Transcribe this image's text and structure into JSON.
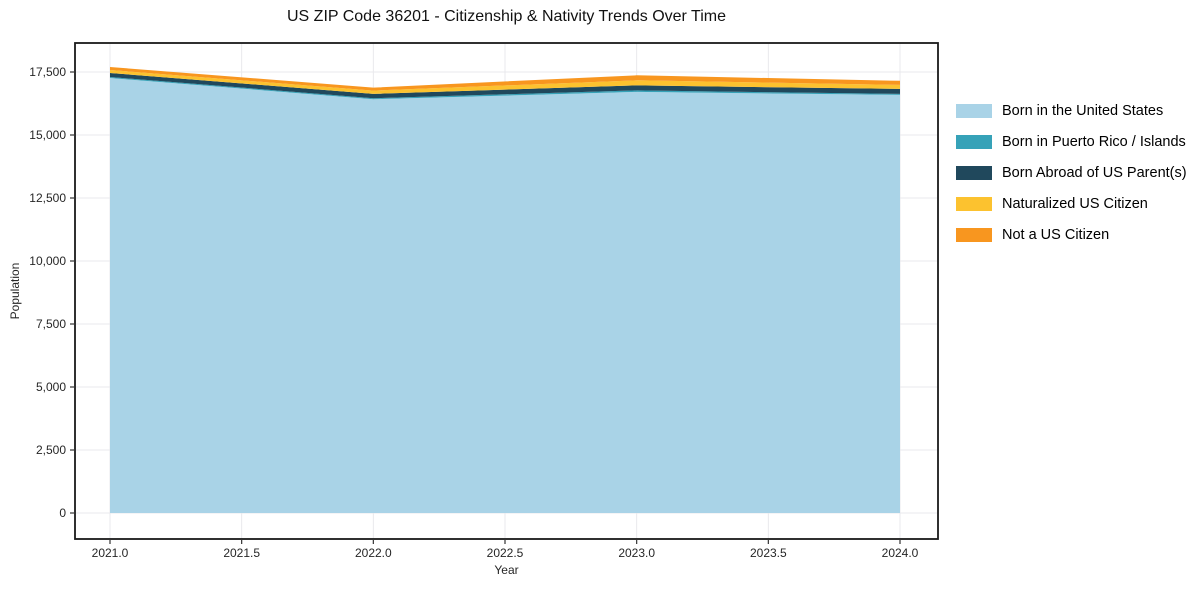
{
  "title": "US ZIP Code 36201 - Citizenship & Nativity Trends Over Time",
  "chart_data": {
    "type": "area",
    "stacked": true,
    "title": "US ZIP Code 36201 - Citizenship & Nativity Trends Over Time",
    "xlabel": "Year",
    "ylabel": "Population",
    "x": [
      2021,
      2022,
      2023,
      2024
    ],
    "series": [
      {
        "name": "Born in the United States",
        "color": "#a9d3e7",
        "values": [
          17260,
          16420,
          16710,
          16590
        ]
      },
      {
        "name": "Born in Puerto Rico / Islands",
        "color": "#36a2b8",
        "values": [
          40,
          40,
          60,
          40
        ]
      },
      {
        "name": "Born Abroad of US Parent(s)",
        "color": "#20485c",
        "values": [
          160,
          170,
          200,
          200
        ]
      },
      {
        "name": "Naturalized US Citizen",
        "color": "#fcc22f",
        "values": [
          120,
          130,
          200,
          160
        ]
      },
      {
        "name": "Not a US Citizen",
        "color": "#f8961f",
        "values": [
          120,
          120,
          200,
          160
        ]
      }
    ],
    "totals": [
      17700,
      16880,
      17370,
      17150
    ],
    "xlim": [
      2021,
      2024
    ],
    "ylim": [
      0,
      17500
    ],
    "x_ticks": {
      "values": [
        2021,
        2021.5,
        2022,
        2022.5,
        2023,
        2023.5,
        2024
      ],
      "labels": [
        "2021.0",
        "2021.5",
        "2022.0",
        "2022.5",
        "2023.0",
        "2023.5",
        "2024.0"
      ]
    },
    "y_ticks": {
      "values": [
        0,
        2500,
        5000,
        7500,
        10000,
        12500,
        15000,
        17500
      ],
      "labels": [
        "0",
        "2,500",
        "5,000",
        "7,500",
        "10,000",
        "12,500",
        "15,000",
        "17,500"
      ]
    },
    "grid": true,
    "legend_position": "right",
    "colors": {
      "grid": "#e9e9ec",
      "spine": "#1a1a1a",
      "tick": "#333333",
      "text": "#262626",
      "background": "#ffffff"
    }
  }
}
